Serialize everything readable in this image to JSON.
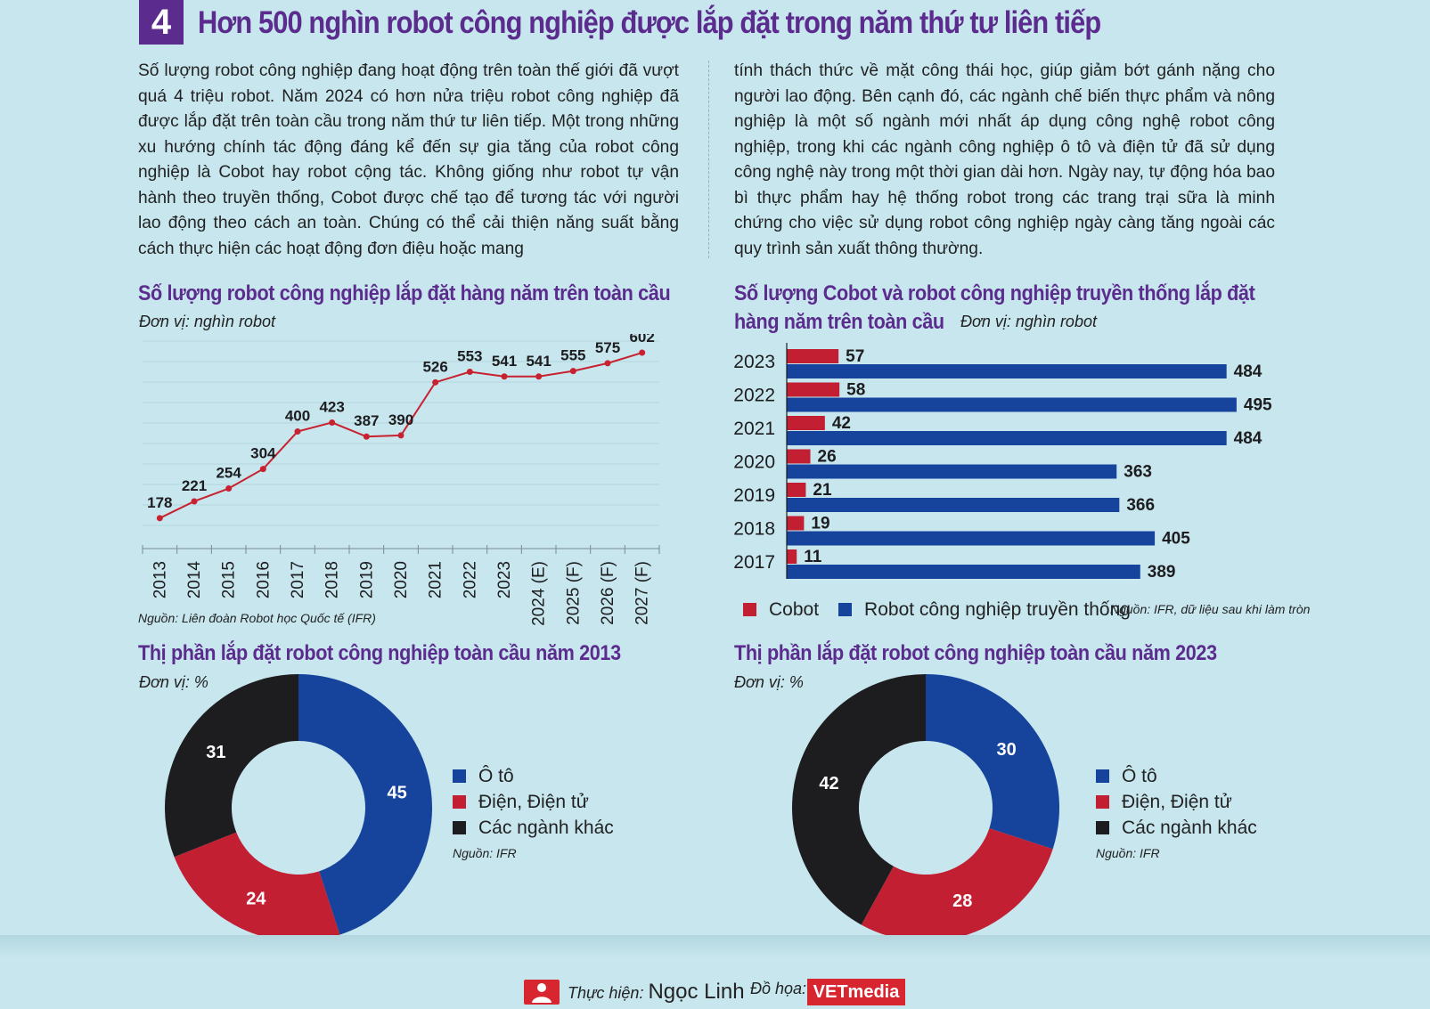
{
  "header": {
    "number": "4",
    "title": "Hơn 500 nghìn robot công nghiệp được lắp đặt trong năm thứ tư liên tiếp"
  },
  "intro": {
    "left": "Số lượng robot công nghiệp đang hoạt động trên toàn thế giới đã vượt quá 4 triệu robot. Năm 2024 có hơn nửa triệu robot công nghiệp đã được lắp đặt trên toàn cầu trong năm thứ tư liên tiếp. Một trong những xu hướng chính tác động đáng kể đến sự gia tăng của robot công nghiệp là Cobot hay robot cộng tác. Không giống như robot tự vận hành theo truyền thống, Cobot được chế tạo để tương tác với người lao động theo cách an toàn. Chúng có thể cải thiện năng suất bằng cách thực hiện các hoạt động đơn điệu hoặc mang",
    "right": "tính thách thức về mặt công thái học, giúp giảm bớt gánh nặng cho người lao động. Bên cạnh đó, các ngành chế biến thực phẩm và nông nghiệp là một số ngành mới nhất áp dụng công nghệ robot công nghiệp, trong khi các ngành công nghiệp ô tô và điện tử đã sử dụng công nghệ này trong một thời gian dài hơn. Ngày nay, tự động hóa bao bì thực phẩm hay hệ thống robot trong các trang trại sữa là minh chứng cho việc sử dụng robot công nghiệp ngày càng tăng ngoài các quy trình sản xuất thông thường."
  },
  "colors": {
    "purple": "#5b2c8e",
    "red": "#c21f32",
    "blue": "#16449c",
    "black": "#1d1d1f",
    "line": "#c8212f"
  },
  "chart_data": [
    {
      "type": "line",
      "title": "Số lượng robot công nghiệp lắp đặt hàng năm trên toàn cầu",
      "unit": "Đơn vị: nghìn robot",
      "source": "Nguồn: Liên đoàn Robot học Quốc tế (IFR)",
      "x": [
        "2013",
        "2014",
        "2015",
        "2016",
        "2017",
        "2018",
        "2019",
        "2020",
        "2021",
        "2022",
        "2023",
        "2024 (E)",
        "2025 (F)",
        "2026 (F)",
        "2027 (F)"
      ],
      "values": [
        178,
        221,
        254,
        304,
        400,
        423,
        387,
        390,
        526,
        553,
        541,
        541,
        555,
        575,
        602
      ],
      "ylim": [
        100,
        650
      ],
      "grid": true
    },
    {
      "type": "bar",
      "orientation": "horizontal",
      "title_line1": "Số lượng Cobot và robot công nghiệp truyền thống lắp đặt",
      "title_line2": "hàng năm trên toàn cầu",
      "unit": "Đơn vị: nghìn robot",
      "source": "Nguồn: IFR, dữ liệu sau khi làm tròn",
      "categories": [
        "2023",
        "2022",
        "2021",
        "2020",
        "2019",
        "2018",
        "2017"
      ],
      "series": [
        {
          "name": "Cobot",
          "values": [
            57,
            58,
            42,
            26,
            21,
            19,
            11
          ]
        },
        {
          "name": "Robot công nghiệp truyền thống",
          "values": [
            484,
            495,
            484,
            363,
            366,
            405,
            389
          ]
        }
      ],
      "xlim": [
        0,
        500
      ]
    },
    {
      "type": "pie",
      "title": "Thị phần lắp đặt robot công nghiệp toàn cầu năm 2013",
      "unit": "Đơn vị: %",
      "source": "Nguồn: IFR",
      "labels": [
        "Ô tô",
        "Điện, Điện tử",
        "Các ngành khác"
      ],
      "values": [
        45,
        24,
        31
      ]
    },
    {
      "type": "pie",
      "title": "Thị phần lắp đặt robot công nghiệp toàn cầu năm 2023",
      "unit": "Đơn vị: %",
      "source": "Nguồn: IFR",
      "labels": [
        "Ô tô",
        "Điện, Điện tử",
        "Các ngành khác"
      ],
      "values": [
        30,
        28,
        42
      ]
    }
  ],
  "footer": {
    "made_by_label": "Thực hiện:",
    "made_by_name": "Ngọc Linh",
    "graphics_label": "Đồ họa:",
    "brand": "VETmedia"
  }
}
